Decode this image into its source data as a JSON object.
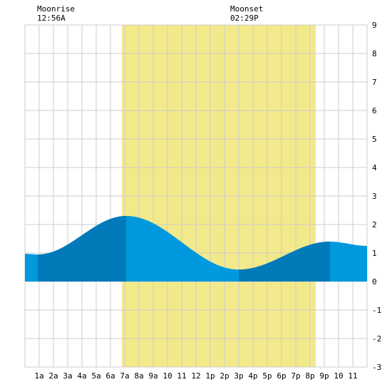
{
  "header": {
    "moonrise_label": "Moonrise",
    "moonrise_time": "12:56A",
    "moonset_label": "Moonset",
    "moonset_time": "02:29P"
  },
  "colors": {
    "background": "#ffffff",
    "grid": "#cccccc",
    "daylight": "#f2e98a",
    "tide_light": "#0099dd",
    "tide_dark": "#007ab8",
    "text": "#000000"
  },
  "chart_data": {
    "type": "area",
    "title": "",
    "xlabel": "",
    "ylabel": "",
    "xlim": [
      0,
      24
    ],
    "ylim": [
      -3,
      9
    ],
    "grid": true,
    "x_tick_labels": [
      "1a",
      "2a",
      "3a",
      "4a",
      "5a",
      "6a",
      "7a",
      "8a",
      "9a",
      "10",
      "11",
      "12",
      "1p",
      "2p",
      "3p",
      "4p",
      "5p",
      "6p",
      "7p",
      "8p",
      "9p",
      "10",
      "11"
    ],
    "y_tick_labels": [
      "-3",
      "-2",
      "-1",
      "0",
      "1",
      "2",
      "3",
      "4",
      "5",
      "6",
      "7",
      "8",
      "9"
    ],
    "daylight": {
      "start": 6.8,
      "end": 20.4
    },
    "tide_extrema": [
      {
        "x": 0.0,
        "y": 0.97
      },
      {
        "x": 0.9,
        "y": 0.95
      },
      {
        "x": 7.1,
        "y": 2.3
      },
      {
        "x": 15.0,
        "y": 0.42
      },
      {
        "x": 21.4,
        "y": 1.4
      },
      {
        "x": 24.0,
        "y": 1.25
      }
    ],
    "dark_bands": [
      {
        "start": 0.9,
        "end": 7.1
      },
      {
        "start": 15.0,
        "end": 21.4
      }
    ]
  }
}
